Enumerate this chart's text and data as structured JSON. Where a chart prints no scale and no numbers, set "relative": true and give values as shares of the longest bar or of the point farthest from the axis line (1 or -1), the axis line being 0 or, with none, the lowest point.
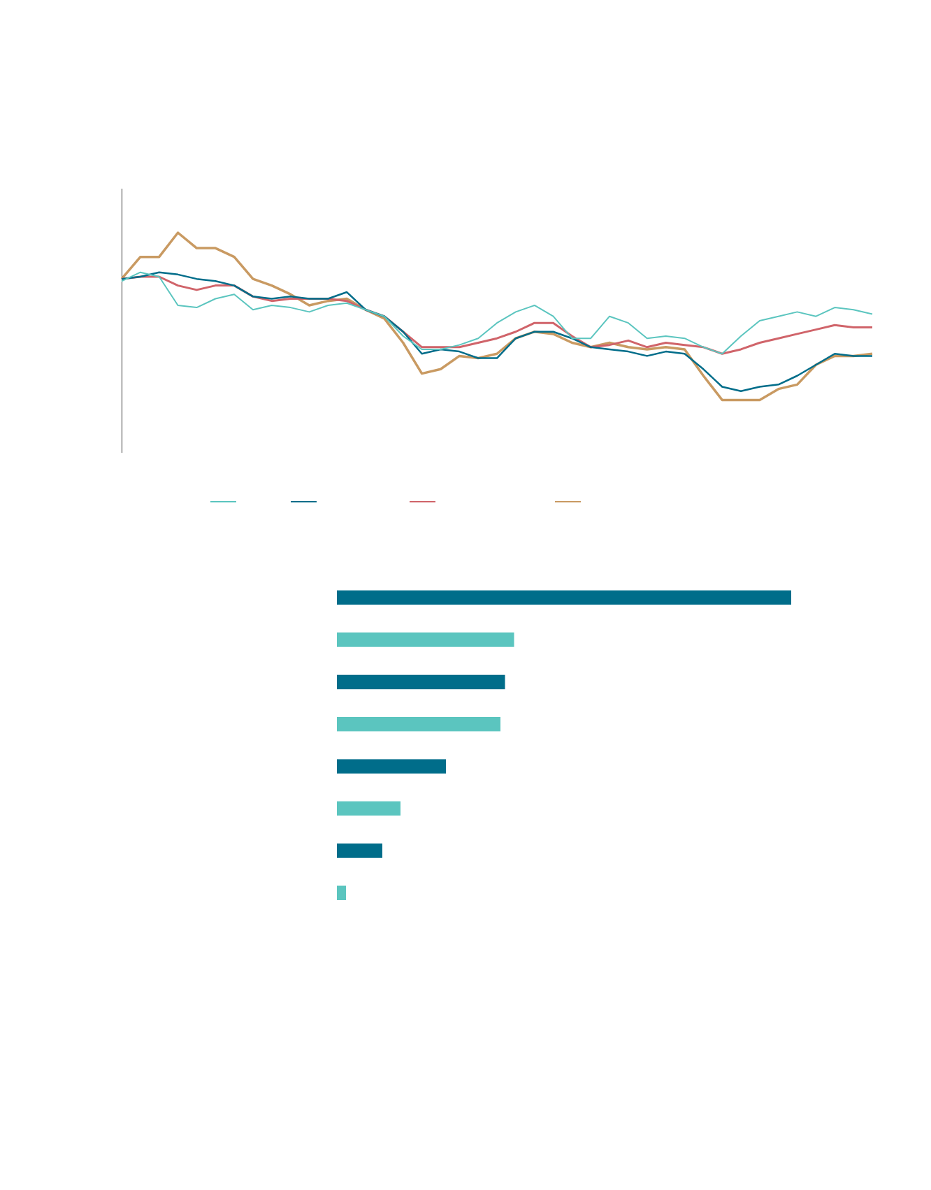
{
  "chart_data": [
    {
      "type": "line",
      "relative": true,
      "categories": [
        null,
        null,
        null,
        null,
        null,
        null,
        null,
        null,
        null,
        null,
        null,
        null,
        null,
        null,
        null,
        null,
        null,
        null,
        null,
        null,
        null,
        null,
        null,
        null,
        null,
        null,
        null,
        null,
        null,
        null,
        null,
        null,
        null,
        null,
        null,
        null,
        null,
        null,
        null,
        null,
        null
      ],
      "grid": false,
      "series": [
        {
          "color": "#5bc5bf",
          "values": [
            0.78,
            0.82,
            0.8,
            0.67,
            0.66,
            0.7,
            0.72,
            0.65,
            0.67,
            0.66,
            0.64,
            0.67,
            0.68,
            0.65,
            0.62,
            0.53,
            0.47,
            0.47,
            0.49,
            0.52,
            0.59,
            0.64,
            0.67,
            0.62,
            0.52,
            0.52,
            0.62,
            0.59,
            0.52,
            0.53,
            0.52,
            0.48,
            0.45,
            0.53,
            0.6,
            0.62,
            0.64,
            0.62,
            0.66,
            0.65,
            0.63
          ]
        },
        {
          "color": "#006d8a",
          "values": [
            0.79,
            0.8,
            0.82,
            0.81,
            0.79,
            0.78,
            0.76,
            0.71,
            0.7,
            0.71,
            0.7,
            0.7,
            0.73,
            0.65,
            0.62,
            0.55,
            0.45,
            0.47,
            0.46,
            0.43,
            0.43,
            0.52,
            0.55,
            0.55,
            0.52,
            0.48,
            0.47,
            0.46,
            0.44,
            0.46,
            0.45,
            0.38,
            0.3,
            0.28,
            0.3,
            0.31,
            0.35,
            0.4,
            0.45,
            0.44,
            0.44
          ]
        },
        {
          "color": "#d0646a",
          "values": [
            0.79,
            0.8,
            0.8,
            0.76,
            0.74,
            0.76,
            0.76,
            0.71,
            0.69,
            0.7,
            0.7,
            0.7,
            0.69,
            0.65,
            0.62,
            0.55,
            0.48,
            0.48,
            0.48,
            0.5,
            0.52,
            0.55,
            0.59,
            0.59,
            0.53,
            0.48,
            0.49,
            0.51,
            0.48,
            0.5,
            0.49,
            0.48,
            0.45,
            0.47,
            0.5,
            0.52,
            0.54,
            0.56,
            0.58,
            0.57,
            0.57
          ]
        },
        {
          "color": "#c99a62",
          "values": [
            0.79,
            0.89,
            0.89,
            1.0,
            0.93,
            0.93,
            0.89,
            0.79,
            0.76,
            0.72,
            0.67,
            0.69,
            0.7,
            0.65,
            0.61,
            0.5,
            0.36,
            0.38,
            0.44,
            0.43,
            0.45,
            0.52,
            0.55,
            0.54,
            0.5,
            0.48,
            0.5,
            0.48,
            0.47,
            0.48,
            0.47,
            0.35,
            0.24,
            0.24,
            0.24,
            0.29,
            0.31,
            0.4,
            0.44,
            0.44,
            0.45
          ]
        }
      ]
    },
    {
      "type": "bar",
      "orientation": "horizontal",
      "relative": true,
      "categories": [
        null,
        null,
        null,
        null,
        null,
        null,
        null,
        null
      ],
      "values": [
        1.0,
        0.39,
        0.37,
        0.36,
        0.24,
        0.14,
        0.1,
        0.02
      ],
      "colors": [
        "#006d8a",
        "#5bc5bf",
        "#006d8a",
        "#5bc5bf",
        "#006d8a",
        "#5bc5bf",
        "#006d8a",
        "#5bc5bf"
      ]
    }
  ]
}
